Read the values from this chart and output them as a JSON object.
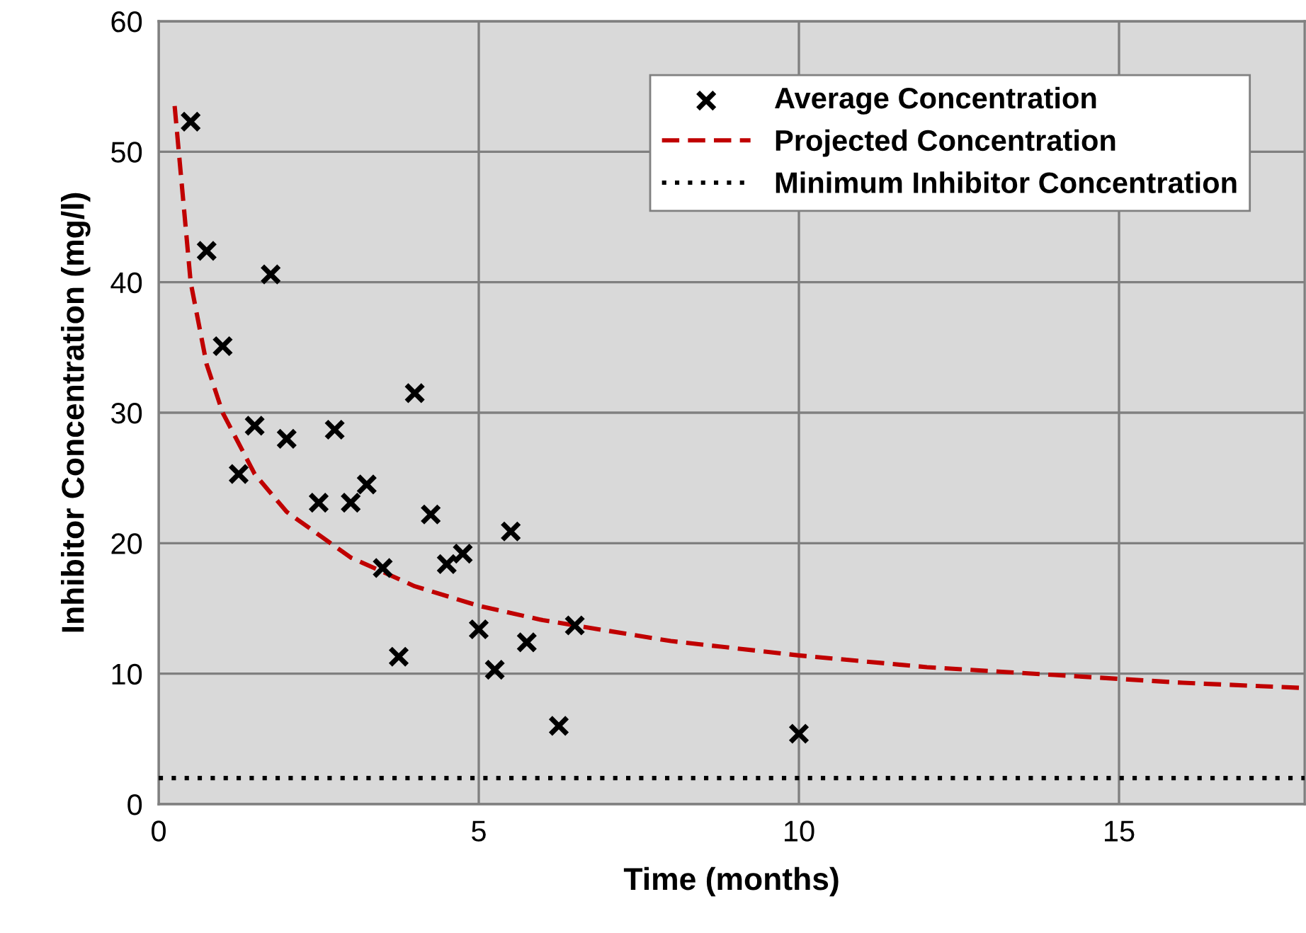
{
  "chart_data": {
    "type": "scatter",
    "xlabel": "Time (months)",
    "ylabel": "Inhibitor Concentration (mg/l)",
    "xlim": [
      0,
      17.9
    ],
    "xticks": [
      0,
      5,
      10,
      15
    ],
    "ylim": [
      0,
      60
    ],
    "yticks": [
      0,
      10,
      20,
      30,
      40,
      50,
      60
    ],
    "grid": true,
    "legend": "top right",
    "series": [
      {
        "name": "Average Concentration",
        "marker": "cross",
        "color": "#000000",
        "x": [
          0.5,
          0.75,
          1.0,
          1.25,
          1.5,
          1.75,
          2.0,
          2.5,
          2.75,
          3.0,
          3.25,
          3.5,
          3.75,
          4.0,
          4.25,
          4.5,
          4.75,
          5.0,
          5.25,
          5.5,
          5.75,
          6.25,
          6.5,
          10
        ],
        "values": [
          52.3,
          42.4,
          35.1,
          25.3,
          29.0,
          40.6,
          28.0,
          23.1,
          28.7,
          23.1,
          24.5,
          18.1,
          11.3,
          31.5,
          22.2,
          18.4,
          19.2,
          13.4,
          10.3,
          20.9,
          12.4,
          6.0,
          13.7,
          5.4
        ]
      },
      {
        "name": "Projected Concentration",
        "type": "line",
        "line_style": "dashed",
        "color": "#c00000",
        "x": [
          0.25,
          0.5,
          0.75,
          1,
          1.5,
          2,
          3,
          4,
          5,
          6,
          8,
          10,
          12,
          14,
          16,
          17.9
        ],
        "values": [
          53.5,
          40,
          33.7,
          30,
          25.3,
          22.4,
          18.9,
          16.7,
          15.2,
          14.1,
          12.5,
          11.4,
          10.5,
          9.9,
          9.3,
          8.9
        ]
      },
      {
        "name": "Minimum Inhibitor Concentration",
        "type": "line",
        "line_style": "dotted",
        "color": "#000000",
        "x": [
          0,
          17.9
        ],
        "values": [
          2,
          2
        ]
      }
    ]
  }
}
